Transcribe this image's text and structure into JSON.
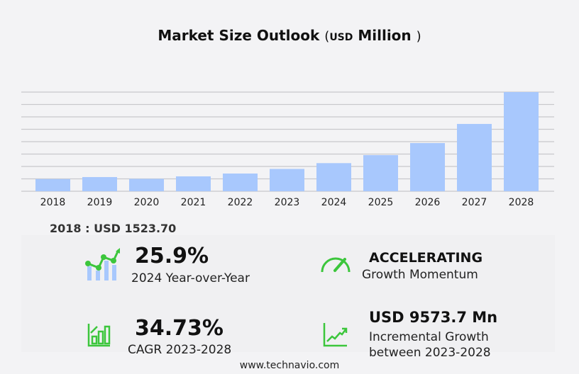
{
  "title": {
    "main": "Market Size Outlook",
    "open": "(",
    "unit": "USD",
    "unit2": "Million",
    "close": ")"
  },
  "chart_data": {
    "type": "bar",
    "categories": [
      "2018",
      "2019",
      "2020",
      "2021",
      "2022",
      "2023",
      "2024",
      "2025",
      "2026",
      "2027",
      "2028"
    ],
    "values": [
      1523.7,
      1766,
      1545,
      1854,
      2208,
      2783,
      3504,
      4503,
      6004,
      8388,
      12357
    ],
    "ylim": [
      0,
      12357
    ],
    "grid": true,
    "bar_color": "#a8c8fd"
  },
  "base_label": "2018 : USD  1523.70",
  "stats": {
    "yoy_value": "25.9%",
    "yoy_label": "2024 Year-over-Year",
    "momentum_value": "ACCELERATING",
    "momentum_label": "Growth Momentum",
    "cagr_value": "34.73%",
    "cagr_label": "CAGR 2023-2028",
    "incr_value": "USD 9573.7 Mn",
    "incr_label1": "Incremental Growth",
    "incr_label2": "between 2023-2028"
  },
  "icons": {
    "yoy": "chart-trend-icon",
    "momentum": "speedometer-icon",
    "cagr": "bar-growth-icon",
    "incremental": "line-growth-icon",
    "accent": "#3cc63c"
  },
  "footer": "www.technavio.com"
}
